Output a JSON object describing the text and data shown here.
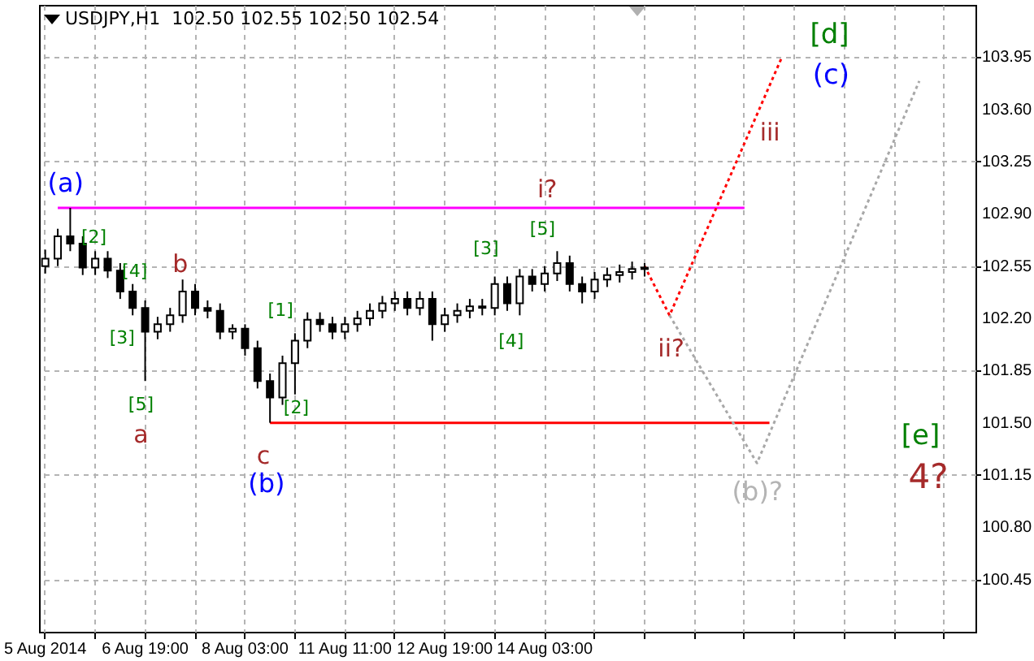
{
  "chart_data": {
    "type": "candlestick",
    "title": "USDJPY,H1  102.50 102.55 102.50 102.54",
    "grid": true,
    "color": "#000000",
    "ylim": [
      100.1,
      104.3
    ],
    "yticks": [
      {
        "value": 100.45,
        "label": "100.45"
      },
      {
        "value": 100.8,
        "label": "100.80"
      },
      {
        "value": 101.15,
        "label": "101.15"
      },
      {
        "value": 101.5,
        "label": "101.50"
      },
      {
        "value": 101.85,
        "label": "101.85"
      },
      {
        "value": 102.2,
        "label": "102.20"
      },
      {
        "value": 102.55,
        "label": "102.55"
      },
      {
        "value": 102.9,
        "label": "102.90"
      },
      {
        "value": 103.25,
        "label": "103.25"
      },
      {
        "value": 103.6,
        "label": "103.60"
      },
      {
        "value": 103.95,
        "label": "103.95"
      }
    ],
    "categories": [
      "5 Aug 2014",
      null,
      null,
      null,
      null,
      null,
      null,
      null,
      "6 Aug 19:00",
      null,
      null,
      null,
      null,
      null,
      null,
      null,
      "8 Aug 03:00",
      null,
      null,
      null,
      null,
      null,
      null,
      null,
      "11 Aug 11:00",
      null,
      null,
      null,
      null,
      null,
      null,
      null,
      "12 Aug 19:00",
      null,
      null,
      null,
      null,
      null,
      null,
      null,
      "14 Aug 03:00",
      null,
      null,
      null,
      null,
      null,
      null,
      null,
      null,
      null,
      null,
      null,
      null,
      null,
      null,
      null,
      null,
      null,
      null,
      null,
      null,
      null,
      null,
      null,
      null,
      null,
      null,
      null,
      null,
      null,
      null,
      null,
      null,
      null,
      null
    ],
    "ohlc": [
      [
        102.55,
        102.66,
        102.5,
        102.6
      ],
      [
        102.6,
        102.8,
        102.55,
        102.75
      ],
      [
        102.75,
        102.94,
        102.65,
        102.7
      ],
      [
        102.7,
        102.75,
        102.49,
        102.54
      ],
      [
        102.54,
        102.65,
        102.49,
        102.6
      ],
      [
        102.6,
        102.65,
        102.47,
        102.52
      ],
      [
        102.52,
        102.57,
        102.33,
        102.38
      ],
      [
        102.38,
        102.43,
        102.22,
        102.27
      ],
      [
        102.27,
        102.32,
        101.78,
        102.11
      ],
      [
        102.11,
        102.21,
        102.06,
        102.16
      ],
      [
        102.16,
        102.27,
        102.11,
        102.22
      ],
      [
        102.22,
        102.46,
        102.17,
        102.38
      ],
      [
        102.38,
        102.43,
        102.22,
        102.27
      ],
      [
        102.27,
        102.32,
        102.2,
        102.25
      ],
      [
        102.25,
        102.3,
        102.06,
        102.11
      ],
      [
        102.11,
        102.16,
        102.06,
        102.13
      ],
      [
        102.13,
        102.16,
        101.95,
        102.0
      ],
      [
        102.0,
        102.05,
        101.73,
        101.78
      ],
      [
        101.78,
        101.83,
        101.5,
        101.67
      ],
      [
        101.67,
        101.95,
        101.62,
        101.9
      ],
      [
        101.9,
        102.1,
        101.69,
        102.05
      ],
      [
        102.05,
        102.24,
        102.0,
        102.19
      ],
      [
        102.19,
        102.24,
        102.11,
        102.16
      ],
      [
        102.16,
        102.21,
        102.06,
        102.11
      ],
      [
        102.11,
        102.21,
        102.06,
        102.16
      ],
      [
        102.16,
        102.25,
        102.11,
        102.2
      ],
      [
        102.2,
        102.3,
        102.15,
        102.25
      ],
      [
        102.25,
        102.35,
        102.2,
        102.3
      ],
      [
        102.3,
        102.38,
        102.25,
        102.33
      ],
      [
        102.33,
        102.38,
        102.22,
        102.27
      ],
      [
        102.27,
        102.38,
        102.22,
        102.33
      ],
      [
        102.33,
        102.38,
        102.05,
        102.16
      ],
      [
        102.16,
        102.27,
        102.11,
        102.22
      ],
      [
        102.22,
        102.3,
        102.17,
        102.25
      ],
      [
        102.25,
        102.33,
        102.2,
        102.28
      ],
      [
        102.28,
        102.33,
        102.22,
        102.27
      ],
      [
        102.27,
        102.48,
        102.22,
        102.43
      ],
      [
        102.43,
        102.48,
        102.25,
        102.3
      ],
      [
        102.3,
        102.53,
        102.22,
        102.48
      ],
      [
        102.48,
        102.53,
        102.38,
        102.43
      ],
      [
        102.43,
        102.55,
        102.38,
        102.5
      ],
      [
        102.5,
        102.65,
        102.45,
        102.57
      ],
      [
        102.57,
        102.62,
        102.38,
        102.43
      ],
      [
        102.43,
        102.48,
        102.3,
        102.38
      ],
      [
        102.38,
        102.51,
        102.33,
        102.46
      ],
      [
        102.46,
        102.54,
        102.41,
        102.49
      ],
      [
        102.49,
        102.56,
        102.44,
        102.51
      ],
      [
        102.51,
        102.58,
        102.46,
        102.53
      ],
      [
        102.53,
        102.57,
        102.48,
        102.54
      ],
      null,
      null,
      null,
      null,
      null,
      null,
      null,
      null,
      null,
      null,
      null,
      null,
      null,
      null,
      null,
      null,
      null,
      null,
      null,
      null,
      null,
      null,
      null,
      null,
      null,
      null
    ],
    "series": [
      {
        "type": "line",
        "color": "#ff00ff",
        "line_style": "solid",
        "values": [
          null,
          102.94,
          null,
          null,
          null,
          null,
          null,
          null,
          null,
          null,
          null,
          null,
          null,
          null,
          null,
          null,
          null,
          null,
          null,
          null,
          null,
          null,
          null,
          null,
          null,
          null,
          null,
          null,
          null,
          null,
          null,
          null,
          null,
          null,
          null,
          null,
          null,
          null,
          null,
          null,
          null,
          null,
          null,
          null,
          null,
          null,
          null,
          null,
          null,
          null,
          null,
          null,
          null,
          null,
          null,
          null,
          102.94,
          null,
          null,
          null,
          null,
          null,
          null,
          null,
          null,
          null,
          null,
          null,
          null,
          null,
          null,
          null,
          null,
          null,
          null
        ]
      },
      {
        "type": "line",
        "color": "#ff0000",
        "line_style": "solid",
        "values": [
          null,
          null,
          null,
          null,
          null,
          null,
          null,
          null,
          null,
          null,
          null,
          null,
          null,
          null,
          null,
          null,
          null,
          null,
          101.5,
          null,
          null,
          null,
          null,
          null,
          null,
          null,
          null,
          null,
          null,
          null,
          null,
          null,
          null,
          null,
          null,
          null,
          null,
          null,
          null,
          null,
          null,
          null,
          null,
          null,
          null,
          null,
          null,
          null,
          null,
          null,
          null,
          null,
          null,
          null,
          null,
          null,
          null,
          null,
          101.5,
          null,
          null,
          null,
          null,
          null,
          null,
          null,
          null,
          null,
          null,
          null,
          null,
          null,
          null,
          null,
          null
        ]
      },
      {
        "type": "line",
        "color": "#ff0000",
        "line_style": "dotted",
        "values": [
          null,
          null,
          null,
          null,
          null,
          null,
          null,
          null,
          null,
          null,
          null,
          null,
          null,
          null,
          null,
          null,
          null,
          null,
          null,
          null,
          null,
          null,
          null,
          null,
          null,
          null,
          null,
          null,
          null,
          null,
          null,
          null,
          null,
          null,
          null,
          null,
          null,
          null,
          null,
          null,
          null,
          null,
          null,
          null,
          null,
          null,
          null,
          null,
          102.55,
          null,
          102.22,
          null,
          null,
          null,
          null,
          null,
          null,
          null,
          null,
          103.95,
          null,
          null,
          null,
          null,
          null,
          null,
          null,
          null,
          null,
          null,
          null,
          null,
          null,
          null,
          null
        ]
      },
      {
        "type": "line",
        "color": "#a8a8a8",
        "line_style": "dotted",
        "values": [
          null,
          null,
          null,
          null,
          null,
          null,
          null,
          null,
          null,
          null,
          null,
          null,
          null,
          null,
          null,
          null,
          null,
          null,
          null,
          null,
          null,
          null,
          null,
          null,
          null,
          null,
          null,
          null,
          null,
          null,
          null,
          null,
          null,
          null,
          null,
          null,
          null,
          null,
          null,
          null,
          null,
          null,
          null,
          null,
          null,
          null,
          null,
          null,
          null,
          null,
          102.22,
          null,
          null,
          null,
          null,
          null,
          null,
          101.23,
          null,
          null,
          null,
          null,
          null,
          null,
          null,
          null,
          null,
          null,
          null,
          null,
          103.79,
          null,
          null,
          null,
          null
        ]
      }
    ],
    "annotations": [
      "(a)",
      "[2]",
      "[4]",
      "b",
      "[3]",
      {
        "text": "[5]",
        "y": 101.78
      },
      "a",
      "[1]",
      "[2]",
      "c",
      "(b)",
      "[3]",
      "[4]",
      "[5]",
      "i?",
      "ii?",
      "iii",
      "[d]",
      "(c)",
      "(b)?",
      "[e]",
      "4?"
    ]
  }
}
